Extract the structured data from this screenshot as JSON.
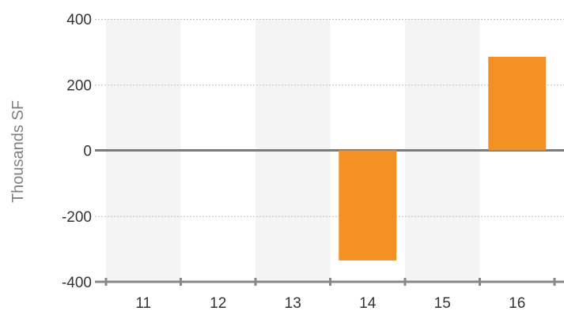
{
  "chart_data": {
    "type": "bar",
    "ylabel": "Thousands SF",
    "xlabel": "",
    "categories": [
      "11",
      "12",
      "13",
      "14",
      "15",
      "16"
    ],
    "values": [
      0,
      0,
      0,
      -335,
      0,
      285
    ],
    "ylim": [
      -400,
      400
    ],
    "yticks": [
      400,
      200,
      0,
      -200,
      -400
    ],
    "ytick_labels": [
      "400",
      "200",
      "0",
      "-200",
      "-400"
    ],
    "grid": true,
    "legend": "none",
    "colors": {
      "bar": "#f39125",
      "band": "#f4f4f4",
      "grid": "#bfbfbf",
      "zero_line": "#7b7b7b",
      "axis": "#888888"
    }
  }
}
